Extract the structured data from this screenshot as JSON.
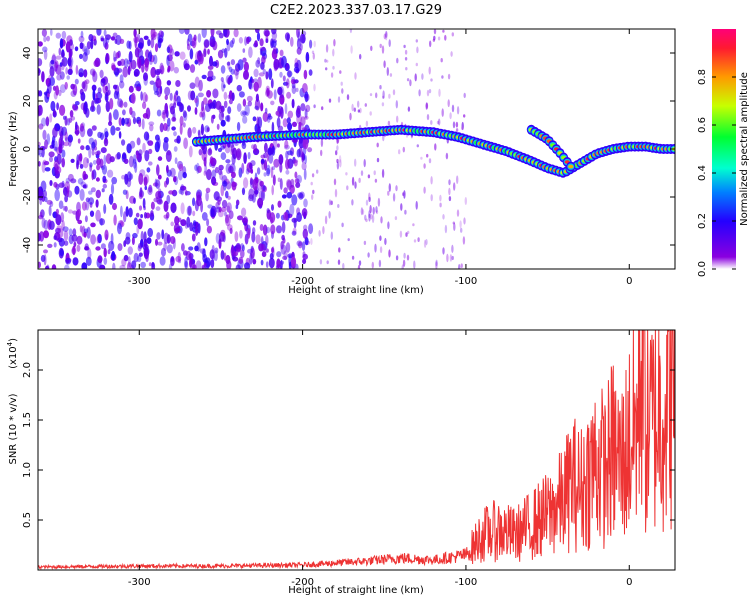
{
  "title": "C2E2.2023.337.03.17.G29",
  "chart_data": [
    {
      "type": "heatmap",
      "xlabel": "Height of straight line (km)",
      "ylabel": "Frequency (Hz)",
      "xlim": [
        -362,
        28
      ],
      "ylim": [
        -50,
        50
      ],
      "xticks": [
        -300,
        -200,
        -100,
        0
      ],
      "xtick_labels": [
        "-300",
        "-200",
        "-100",
        "0"
      ],
      "yticks": [
        -40,
        -20,
        0,
        20,
        40
      ],
      "ytick_labels": [
        "-40",
        "-20",
        "0",
        "20",
        "40"
      ],
      "colorbar": {
        "label": "Normalized spectral amplitude",
        "range": [
          0,
          1
        ],
        "ticks": [
          0.0,
          0.2,
          0.4,
          0.6,
          0.8
        ],
        "tick_labels": [
          "0.0",
          "0.2",
          "0.4",
          "0.6",
          "0.8"
        ]
      },
      "ridge": {
        "x": [
          -265,
          -230,
          -200,
          -180,
          -160,
          -140,
          -120,
          -105,
          -90,
          -75,
          -60,
          -50,
          -40,
          -30,
          -20,
          -10,
          0,
          10,
          20,
          28
        ],
        "y": [
          3,
          5,
          6,
          6,
          7,
          8,
          7,
          5,
          2,
          -1,
          -5,
          -8,
          -10,
          -6,
          -2,
          0,
          1,
          1,
          0,
          0
        ]
      },
      "ridge_branch": {
        "x": [
          -60,
          -50,
          -42,
          -35
        ],
        "y": [
          8,
          4,
          -2,
          -8
        ]
      },
      "noise_extent_x": [
        -362,
        -195
      ],
      "grid": false
    },
    {
      "type": "line",
      "xlabel": "Height of straight line (km)",
      "ylabel": "SNR (10 * v/v)",
      "multiplier": "(x10",
      "multiplier_exp": "4",
      "multiplier_close": ")",
      "xlim": [
        -362,
        28
      ],
      "ylim": [
        0,
        24000
      ],
      "xticks": [
        -300,
        -200,
        -100,
        0
      ],
      "xtick_labels": [
        "-300",
        "-200",
        "-100",
        "0"
      ],
      "yticks": [
        5000,
        10000,
        15000,
        20000
      ],
      "ytick_labels": [
        "0.5",
        "1.0",
        "1.5",
        "2.0"
      ],
      "series": [
        {
          "color": "#ee3333",
          "x": [
            -362,
            -300,
            -250,
            -200,
            -180,
            -160,
            -140,
            -120,
            -100,
            -95,
            -90,
            -80,
            -70,
            -60,
            -50,
            -40,
            -35,
            -30,
            -25,
            -20,
            -15,
            -10,
            -5,
            0,
            5,
            8,
            10,
            15,
            20,
            28
          ],
          "y": [
            300,
            400,
            400,
            500,
            700,
            900,
            1200,
            1000,
            1500,
            2500,
            3500,
            4000,
            3500,
            4500,
            5500,
            7000,
            9000,
            8000,
            9500,
            11000,
            10000,
            12000,
            10500,
            13000,
            14500,
            24000,
            14000,
            15000,
            16500,
            18000
          ]
        }
      ],
      "grid": false
    }
  ]
}
